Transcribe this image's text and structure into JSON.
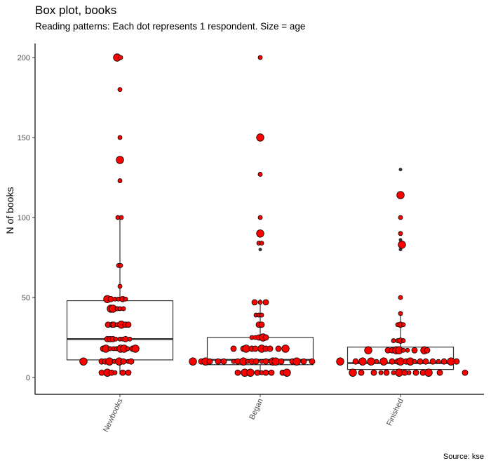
{
  "chart_data": {
    "type": "box",
    "title": "Box plot, books",
    "subtitle": "Reading patterns: Each dot represents 1 respondent. Size = age",
    "caption": "Source: kse",
    "xlabel": "",
    "ylabel": "N of books",
    "ylim": [
      -10,
      212
    ],
    "yticks": [
      0,
      50,
      100,
      150,
      200
    ],
    "ytick_labels": [
      "0",
      "50",
      "100",
      "150",
      "200"
    ],
    "grid": false,
    "categories": [
      "Newbooks",
      "Began",
      "Finished"
    ],
    "point_fill": "#ff0000",
    "point_stroke": "#000000",
    "outlier_color": "#333333",
    "boxes": [
      {
        "category": "Newbooks",
        "lower_whisker": 2,
        "q1": 11,
        "median": 24,
        "q3": 48,
        "upper_whisker": 100
      },
      {
        "category": "Began",
        "lower_whisker": 2,
        "q1": 8,
        "median": 11,
        "q3": 25,
        "upper_whisker": 49
      },
      {
        "category": "Finished",
        "lower_whisker": 2,
        "q1": 5,
        "median": 9,
        "q3": 19,
        "upper_whisker": 40
      }
    ],
    "outliers": [
      {
        "category": "Began",
        "values": [
          200,
          150,
          127,
          100,
          90,
          84,
          80
        ]
      },
      {
        "category": "Finished",
        "values": [
          130,
          114,
          100,
          90,
          86,
          83,
          80
        ]
      }
    ],
    "points_note_columns": [
      "value",
      "jitter",
      "size"
    ],
    "points": [
      {
        "category": "Newbooks",
        "data": [
          [
            200,
            -0.02,
            3
          ],
          [
            200,
            0.005,
            1
          ],
          [
            180,
            0,
            1
          ],
          [
            150,
            0,
            1
          ],
          [
            136,
            0,
            3
          ],
          [
            123,
            0,
            1
          ],
          [
            100,
            -0.015,
            1
          ],
          [
            100,
            0.01,
            1
          ],
          [
            70,
            -0.01,
            1
          ],
          [
            70,
            0.005,
            1
          ],
          [
            57,
            0,
            1
          ],
          [
            49,
            -0.09,
            3
          ],
          [
            49,
            -0.065,
            2
          ],
          [
            49,
            -0.035,
            1
          ],
          [
            49,
            -0.01,
            1
          ],
          [
            49,
            0.02,
            2
          ],
          [
            49,
            0.04,
            1
          ],
          [
            43,
            -0.065,
            3
          ],
          [
            43,
            -0.05,
            3
          ],
          [
            43,
            -0.02,
            1
          ],
          [
            43,
            0,
            1
          ],
          [
            43,
            0.025,
            1
          ],
          [
            33,
            -0.085,
            2
          ],
          [
            33,
            -0.055,
            2
          ],
          [
            33,
            -0.045,
            2
          ],
          [
            33,
            -0.02,
            1
          ],
          [
            33,
            0.01,
            3
          ],
          [
            33,
            0.04,
            2
          ],
          [
            33,
            0.06,
            2
          ],
          [
            24,
            -0.09,
            2
          ],
          [
            24,
            -0.07,
            2
          ],
          [
            24,
            -0.05,
            2
          ],
          [
            24,
            -0.03,
            1
          ],
          [
            24,
            0,
            1
          ],
          [
            24,
            0.02,
            1
          ],
          [
            24,
            0.04,
            2
          ],
          [
            24,
            0.07,
            1
          ],
          [
            18,
            -0.12,
            2
          ],
          [
            18,
            -0.1,
            3
          ],
          [
            18,
            -0.07,
            1
          ],
          [
            18,
            -0.045,
            1
          ],
          [
            18,
            -0.025,
            1
          ],
          [
            18,
            0.005,
            3
          ],
          [
            18,
            0.03,
            3
          ],
          [
            18,
            0.055,
            1
          ],
          [
            18,
            0.09,
            2
          ],
          [
            18,
            0.11,
            3
          ],
          [
            10,
            -0.26,
            3
          ],
          [
            10,
            -0.13,
            2
          ],
          [
            10,
            -0.105,
            2
          ],
          [
            10,
            -0.075,
            3
          ],
          [
            10,
            -0.04,
            1
          ],
          [
            10,
            -0.005,
            3
          ],
          [
            10,
            0.025,
            2
          ],
          [
            10,
            0.06,
            1
          ],
          [
            10,
            0.08,
            2
          ],
          [
            3,
            -0.13,
            2
          ],
          [
            3,
            -0.09,
            3
          ],
          [
            3,
            -0.06,
            2
          ],
          [
            3,
            -0.035,
            1
          ],
          [
            3,
            0.02,
            2
          ],
          [
            3,
            0.06,
            2
          ]
        ]
      },
      {
        "category": "Began",
        "data": [
          [
            200,
            0,
            1
          ],
          [
            150,
            0,
            3
          ],
          [
            127,
            0,
            1
          ],
          [
            100,
            0,
            1
          ],
          [
            90,
            0,
            3
          ],
          [
            84,
            -0.01,
            1
          ],
          [
            84,
            0.01,
            1
          ],
          [
            47,
            -0.04,
            2
          ],
          [
            47,
            0,
            1
          ],
          [
            47,
            0.04,
            2
          ],
          [
            39,
            -0.03,
            1
          ],
          [
            39,
            -0.01,
            1
          ],
          [
            39,
            0.01,
            1
          ],
          [
            33,
            -0.01,
            2
          ],
          [
            33,
            0.01,
            2
          ],
          [
            25,
            -0.06,
            1
          ],
          [
            25,
            -0.035,
            1
          ],
          [
            25,
            -0.01,
            2
          ],
          [
            25,
            0.02,
            3
          ],
          [
            25,
            0.04,
            2
          ],
          [
            18,
            -0.19,
            2
          ],
          [
            18,
            -0.12,
            2
          ],
          [
            18,
            -0.1,
            3
          ],
          [
            18,
            -0.06,
            2
          ],
          [
            18,
            -0.035,
            2
          ],
          [
            18,
            0.01,
            3
          ],
          [
            18,
            0.04,
            2
          ],
          [
            18,
            0.07,
            2
          ],
          [
            18,
            0.13,
            2
          ],
          [
            18,
            0.18,
            3
          ],
          [
            10,
            -0.48,
            3
          ],
          [
            10,
            -0.42,
            2
          ],
          [
            10,
            -0.39,
            3
          ],
          [
            10,
            -0.36,
            2
          ],
          [
            10,
            -0.3,
            2
          ],
          [
            10,
            -0.26,
            2
          ],
          [
            10,
            -0.19,
            1
          ],
          [
            10,
            -0.16,
            2
          ],
          [
            10,
            -0.12,
            3
          ],
          [
            10,
            -0.09,
            1
          ],
          [
            10,
            -0.06,
            2
          ],
          [
            10,
            -0.03,
            2
          ],
          [
            10,
            0.01,
            1
          ],
          [
            10,
            0.04,
            2
          ],
          [
            10,
            0.09,
            3
          ],
          [
            10,
            0.11,
            3
          ],
          [
            10,
            0.15,
            2
          ],
          [
            10,
            0.23,
            2
          ],
          [
            10,
            0.26,
            3
          ],
          [
            10,
            0.31,
            2
          ],
          [
            10,
            0.37,
            2
          ],
          [
            3,
            -0.16,
            2
          ],
          [
            3,
            -0.11,
            3
          ],
          [
            3,
            -0.07,
            3
          ],
          [
            3,
            -0.02,
            2
          ],
          [
            3,
            0.01,
            1
          ],
          [
            3,
            0.04,
            2
          ],
          [
            3,
            0.08,
            2
          ],
          [
            3,
            0.16,
            2
          ],
          [
            3,
            0.19,
            3
          ]
        ]
      },
      {
        "category": "Finished",
        "data": [
          [
            114,
            0,
            3
          ],
          [
            100,
            0,
            1
          ],
          [
            90,
            0,
            1
          ],
          [
            83,
            0.01,
            3
          ],
          [
            50,
            0,
            1
          ],
          [
            40,
            0,
            1
          ],
          [
            33,
            -0.02,
            1
          ],
          [
            33,
            0,
            2
          ],
          [
            33,
            0.02,
            1
          ],
          [
            23,
            -0.05,
            1
          ],
          [
            23,
            -0.02,
            1
          ],
          [
            23,
            0,
            2
          ],
          [
            23,
            0.02,
            1
          ],
          [
            17,
            -0.23,
            3
          ],
          [
            17,
            -0.09,
            2
          ],
          [
            17,
            -0.06,
            2
          ],
          [
            17,
            -0.03,
            3
          ],
          [
            17,
            -0.01,
            3
          ],
          [
            17,
            0.02,
            1
          ],
          [
            17,
            0.05,
            1
          ],
          [
            17,
            0.1,
            2
          ],
          [
            17,
            0.17,
            3
          ],
          [
            17,
            0.19,
            2
          ],
          [
            10,
            -0.43,
            3
          ],
          [
            10,
            -0.32,
            2
          ],
          [
            10,
            -0.27,
            3
          ],
          [
            10,
            -0.21,
            3
          ],
          [
            10,
            -0.17,
            1
          ],
          [
            10,
            -0.12,
            3
          ],
          [
            10,
            -0.06,
            2
          ],
          [
            10,
            -0.02,
            2
          ],
          [
            10,
            0.0,
            3
          ],
          [
            10,
            0.04,
            2
          ],
          [
            10,
            0.07,
            3
          ],
          [
            10,
            0.1,
            1
          ],
          [
            10,
            0.14,
            2
          ],
          [
            10,
            0.18,
            2
          ],
          [
            10,
            0.23,
            2
          ],
          [
            10,
            0.27,
            1
          ],
          [
            10,
            0.31,
            2
          ],
          [
            10,
            0.36,
            3
          ],
          [
            10,
            0.4,
            2
          ],
          [
            3,
            -0.34,
            3
          ],
          [
            3,
            -0.28,
            2
          ],
          [
            3,
            -0.19,
            2
          ],
          [
            3,
            -0.14,
            1
          ],
          [
            3,
            -0.1,
            2
          ],
          [
            3,
            -0.05,
            1
          ],
          [
            3,
            -0.01,
            3
          ],
          [
            3,
            0.03,
            2
          ],
          [
            3,
            0.06,
            1
          ],
          [
            3,
            0.11,
            2
          ],
          [
            3,
            0.16,
            2
          ],
          [
            3,
            0.2,
            3
          ],
          [
            3,
            0.28,
            2
          ],
          [
            3,
            0.46,
            2
          ]
        ]
      }
    ]
  }
}
